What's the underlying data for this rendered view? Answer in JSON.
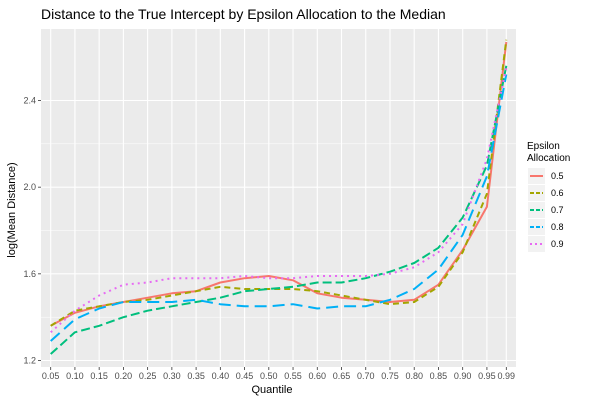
{
  "chart_data": {
    "type": "line",
    "title": "Distance to the True Intercept by Epsilon Allocation to the Median",
    "xlabel": "Quantile",
    "ylabel": "log(Mean Distance)",
    "x_ticks": [
      "0.05",
      "0.10",
      "0.15",
      "0.20",
      "0.25",
      "0.30",
      "0.35",
      "0.40",
      "0.45",
      "0.50",
      "0.55",
      "0.60",
      "0.65",
      "0.70",
      "0.75",
      "0.80",
      "0.85",
      "0.90",
      "0.95",
      "0.99"
    ],
    "y_ticks": [
      1.2,
      1.6,
      2.0,
      2.4
    ],
    "xlim": [
      0.03,
      1.01
    ],
    "ylim": [
      1.17,
      2.73
    ],
    "grid": true,
    "legend": {
      "title_line1": "Epsilon",
      "title_line2": "Allocation",
      "placement": "right"
    },
    "x": [
      0.05,
      0.1,
      0.15,
      0.2,
      0.25,
      0.3,
      0.35,
      0.4,
      0.45,
      0.5,
      0.55,
      0.6,
      0.65,
      0.7,
      0.75,
      0.8,
      0.85,
      0.9,
      0.95,
      0.99
    ],
    "series": [
      {
        "name": "0.5",
        "color": "#F8766D",
        "dash": "",
        "values": [
          1.36,
          1.42,
          1.45,
          1.47,
          1.49,
          1.51,
          1.52,
          1.56,
          1.58,
          1.59,
          1.57,
          1.51,
          1.49,
          1.48,
          1.47,
          1.48,
          1.55,
          1.71,
          1.91,
          2.67
        ]
      },
      {
        "name": "0.6",
        "color": "#A3A500",
        "dash": "6,4",
        "values": [
          1.36,
          1.43,
          1.45,
          1.47,
          1.48,
          1.5,
          1.52,
          1.54,
          1.53,
          1.53,
          1.53,
          1.52,
          1.5,
          1.48,
          1.46,
          1.47,
          1.54,
          1.7,
          1.97,
          2.68
        ]
      },
      {
        "name": "0.7",
        "color": "#00BF7D",
        "dash": "9,4",
        "values": [
          1.23,
          1.33,
          1.36,
          1.4,
          1.43,
          1.45,
          1.47,
          1.49,
          1.52,
          1.53,
          1.54,
          1.56,
          1.56,
          1.58,
          1.61,
          1.65,
          1.72,
          1.86,
          2.1,
          2.56
        ]
      },
      {
        "name": "0.8",
        "color": "#00B0F6",
        "dash": "12,6",
        "values": [
          1.29,
          1.39,
          1.44,
          1.47,
          1.47,
          1.47,
          1.48,
          1.46,
          1.45,
          1.45,
          1.46,
          1.44,
          1.45,
          1.45,
          1.48,
          1.53,
          1.62,
          1.78,
          2.05,
          2.52
        ]
      },
      {
        "name": "0.9",
        "color": "#E76BF3",
        "dash": "2,4",
        "values": [
          1.33,
          1.43,
          1.5,
          1.55,
          1.56,
          1.58,
          1.58,
          1.58,
          1.59,
          1.58,
          1.58,
          1.59,
          1.59,
          1.59,
          1.6,
          1.63,
          1.7,
          1.83,
          2.13,
          2.55
        ]
      }
    ]
  }
}
